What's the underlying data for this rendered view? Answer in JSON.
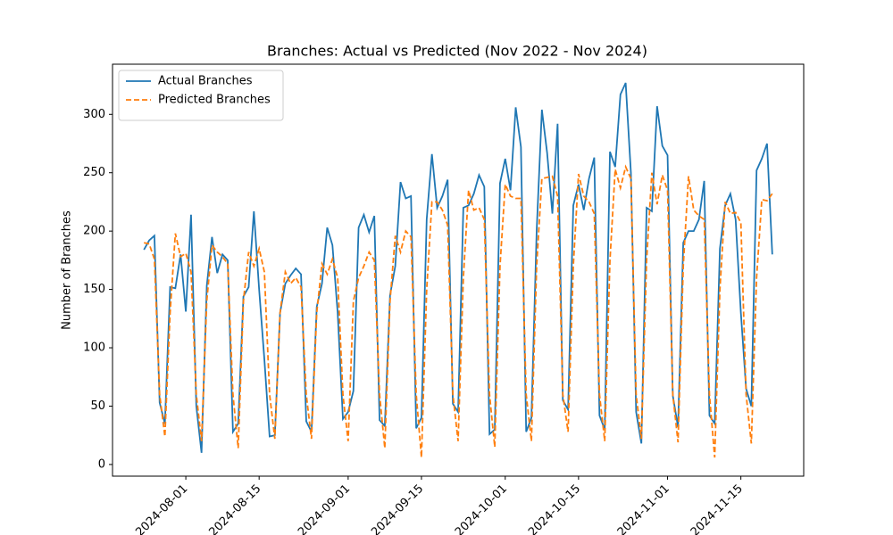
{
  "chart_data": {
    "type": "line",
    "title": "Branches: Actual vs Predicted (Nov 2022 - Nov 2024)",
    "ylabel": "Number of Branches",
    "x": [
      "2024-07-24",
      "2024-07-25",
      "2024-07-26",
      "2024-07-27",
      "2024-07-28",
      "2024-07-29",
      "2024-07-30",
      "2024-07-31",
      "2024-08-01",
      "2024-08-02",
      "2024-08-03",
      "2024-08-04",
      "2024-08-05",
      "2024-08-06",
      "2024-08-07",
      "2024-08-08",
      "2024-08-09",
      "2024-08-10",
      "2024-08-11",
      "2024-08-12",
      "2024-08-13",
      "2024-08-14",
      "2024-08-15",
      "2024-08-16",
      "2024-08-17",
      "2024-08-18",
      "2024-08-19",
      "2024-08-20",
      "2024-08-21",
      "2024-08-22",
      "2024-08-23",
      "2024-08-24",
      "2024-08-25",
      "2024-08-26",
      "2024-08-27",
      "2024-08-28",
      "2024-08-29",
      "2024-08-30",
      "2024-08-31",
      "2024-09-01",
      "2024-09-02",
      "2024-09-03",
      "2024-09-04",
      "2024-09-05",
      "2024-09-06",
      "2024-09-07",
      "2024-09-08",
      "2024-09-09",
      "2024-09-10",
      "2024-09-11",
      "2024-09-12",
      "2024-09-13",
      "2024-09-14",
      "2024-09-15",
      "2024-09-16",
      "2024-09-17",
      "2024-09-18",
      "2024-09-19",
      "2024-09-20",
      "2024-09-21",
      "2024-09-22",
      "2024-09-23",
      "2024-09-24",
      "2024-09-25",
      "2024-09-26",
      "2024-09-27",
      "2024-09-28",
      "2024-09-29",
      "2024-09-30",
      "2024-10-01",
      "2024-10-02",
      "2024-10-03",
      "2024-10-04",
      "2024-10-05",
      "2024-10-06",
      "2024-10-07",
      "2024-10-08",
      "2024-10-09",
      "2024-10-10",
      "2024-10-11",
      "2024-10-12",
      "2024-10-13",
      "2024-10-14",
      "2024-10-15",
      "2024-10-16",
      "2024-10-17",
      "2024-10-18",
      "2024-10-19",
      "2024-10-20",
      "2024-10-21",
      "2024-10-22",
      "2024-10-23",
      "2024-10-24",
      "2024-10-25",
      "2024-10-26",
      "2024-10-27",
      "2024-10-28",
      "2024-10-29",
      "2024-10-30",
      "2024-10-31",
      "2024-11-01",
      "2024-11-02",
      "2024-11-03",
      "2024-11-04",
      "2024-11-05",
      "2024-11-06",
      "2024-11-07",
      "2024-11-08",
      "2024-11-09",
      "2024-11-10",
      "2024-11-11",
      "2024-11-12",
      "2024-11-13",
      "2024-11-14",
      "2024-11-15",
      "2024-11-16",
      "2024-11-17",
      "2024-11-18",
      "2024-11-19",
      "2024-11-20",
      "2024-11-21"
    ],
    "series": [
      {
        "name": "Actual Branches",
        "color": "#1f77b4",
        "dash": false,
        "values": [
          184,
          192,
          196,
          53,
          35,
          152,
          151,
          180,
          131,
          214,
          50,
          10,
          153,
          195,
          164,
          180,
          175,
          28,
          35,
          144,
          152,
          217,
          150,
          90,
          24,
          25,
          130,
          155,
          162,
          168,
          163,
          37,
          28,
          135,
          155,
          203,
          188,
          130,
          39,
          45,
          63,
          203,
          214,
          199,
          213,
          38,
          33,
          145,
          170,
          242,
          228,
          230,
          31,
          40,
          210,
          266,
          220,
          230,
          244,
          52,
          45,
          220,
          222,
          232,
          248,
          238,
          26,
          30,
          241,
          262,
          235,
          306,
          272,
          28,
          40,
          200,
          304,
          267,
          215,
          292,
          55,
          47,
          222,
          240,
          218,
          245,
          263,
          42,
          30,
          268,
          255,
          317,
          327,
          250,
          45,
          18,
          220,
          217,
          307,
          273,
          265,
          59,
          32,
          190,
          200,
          200,
          210,
          243,
          42,
          35,
          185,
          222,
          232,
          210,
          130,
          65,
          50,
          252,
          262,
          275,
          180
        ]
      },
      {
        "name": "Predicted Branches",
        "color": "#ff7f0e",
        "dash": true,
        "values": [
          190,
          189,
          176,
          60,
          24,
          130,
          198,
          178,
          181,
          165,
          60,
          20,
          140,
          188,
          182,
          178,
          172,
          60,
          14,
          140,
          182,
          170,
          185,
          165,
          60,
          22,
          130,
          165,
          155,
          160,
          152,
          60,
          22,
          130,
          172,
          163,
          176,
          160,
          60,
          20,
          140,
          160,
          170,
          182,
          175,
          60,
          14,
          140,
          196,
          182,
          200,
          195,
          60,
          6,
          150,
          225,
          225,
          218,
          205,
          60,
          20,
          160,
          235,
          218,
          220,
          210,
          60,
          15,
          170,
          240,
          230,
          228,
          228,
          60,
          20,
          170,
          245,
          246,
          247,
          230,
          60,
          28,
          170,
          249,
          230,
          225,
          215,
          60,
          20,
          175,
          253,
          237,
          255,
          245,
          60,
          22,
          175,
          250,
          223,
          248,
          235,
          60,
          19,
          170,
          247,
          218,
          213,
          210,
          60,
          6,
          150,
          225,
          215,
          216,
          207,
          60,
          18,
          160,
          227,
          226,
          232
        ]
      }
    ],
    "xlim": [
      "2024-07-18",
      "2024-11-27"
    ],
    "xticks": [
      "2024-08-01",
      "2024-08-15",
      "2024-09-01",
      "2024-09-15",
      "2024-10-01",
      "2024-10-15",
      "2024-11-01",
      "2024-11-15"
    ],
    "ylim": [
      -10,
      343
    ],
    "yticks": [
      0,
      50,
      100,
      150,
      200,
      250,
      300
    ],
    "grid": false,
    "legend": "upper left"
  }
}
